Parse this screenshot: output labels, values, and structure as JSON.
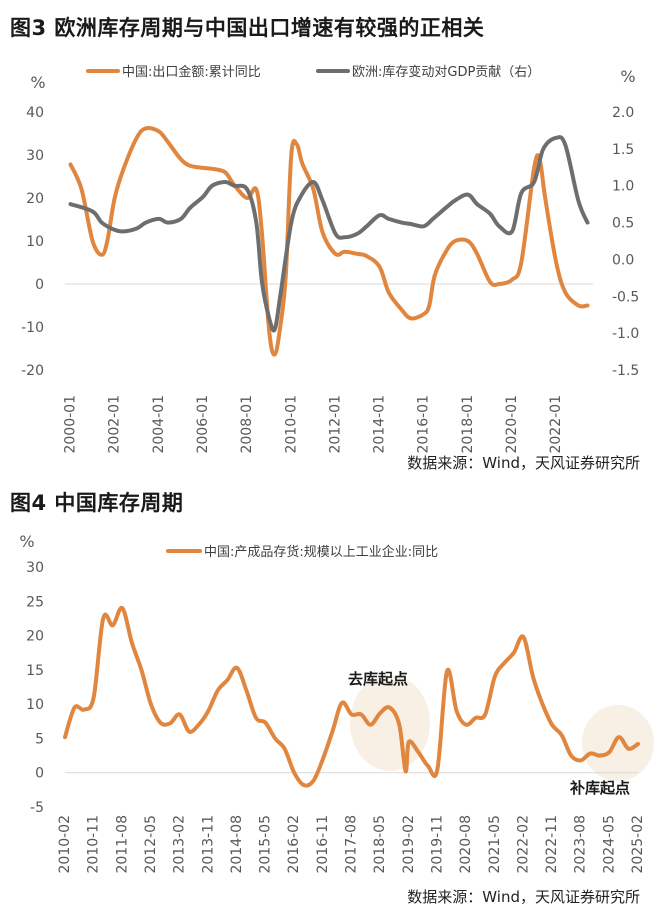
{
  "figure3": {
    "title": "图3  欧洲库存周期与中国出口增速有较强的正相关",
    "source": "数据来源：Wind，天风证券研究所",
    "chart_data": {
      "type": "line",
      "title": "图3  欧洲库存周期与中国出口增速有较强的正相关",
      "left_unit": "%",
      "right_unit": "%",
      "ylim_left": [
        -20,
        40
      ],
      "ylim_right": [
        -1.5,
        2.0
      ],
      "yticks_left": [
        "40",
        "30",
        "20",
        "10",
        "0",
        "-10",
        "-20"
      ],
      "yticks_right": [
        "2.0",
        "1.5",
        "1.0",
        "0.5",
        "0.0",
        "-0.5",
        "-1.0",
        "-1.5"
      ],
      "xticks": [
        "2000-01",
        "2002-01",
        "2004-01",
        "2006-01",
        "2008-01",
        "2010-01",
        "2012-01",
        "2014-01",
        "2016-01",
        "2018-01",
        "2020-01",
        "2022-01"
      ],
      "legend_position": "top",
      "series": [
        {
          "name": "中国:出口金额:累计同比",
          "axis": "left",
          "color": "#E0863F",
          "x": [
            "2000-01",
            "2000-07",
            "2001-01",
            "2001-06",
            "2001-09",
            "2002-01",
            "2002-06",
            "2003-01",
            "2003-06",
            "2004-01",
            "2004-06",
            "2005-01",
            "2005-06",
            "2006-01",
            "2006-06",
            "2007-01",
            "2007-06",
            "2008-01",
            "2008-06",
            "2008-09",
            "2009-01",
            "2009-04",
            "2009-07",
            "2009-10",
            "2010-01",
            "2010-04",
            "2010-07",
            "2011-01",
            "2011-06",
            "2012-01",
            "2012-06",
            "2013-01",
            "2013-06",
            "2014-01",
            "2014-06",
            "2015-01",
            "2015-06",
            "2016-01",
            "2016-04",
            "2016-07",
            "2017-01",
            "2017-06",
            "2018-01",
            "2018-06",
            "2019-01",
            "2019-06",
            "2020-01",
            "2020-06",
            "2021-01",
            "2021-04",
            "2021-07",
            "2022-01",
            "2022-06",
            "2023-01",
            "2023-06"
          ],
          "y": [
            27.8,
            22,
            10,
            6.8,
            10,
            20,
            27,
            34,
            36.2,
            35.5,
            33,
            29,
            27.5,
            27,
            26.8,
            26,
            23,
            20,
            22,
            12,
            -11,
            -16.4,
            -10,
            2,
            30,
            32.5,
            28,
            22,
            12,
            7,
            7.5,
            7,
            6.5,
            4,
            -2,
            -6,
            -8,
            -7,
            -5,
            2,
            7.5,
            10,
            10,
            7,
            0.5,
            0,
            1,
            5,
            27,
            29,
            20,
            5,
            -2,
            -5,
            -5
          ]
        },
        {
          "name": "欧洲:库存变动对GDP贡献（右）",
          "axis": "right",
          "color": "#6E6E6E",
          "x": [
            "2000-01",
            "2001-01",
            "2001-06",
            "2002-01",
            "2002-06",
            "2003-01",
            "2003-06",
            "2004-01",
            "2004-06",
            "2005-01",
            "2005-06",
            "2006-01",
            "2006-06",
            "2007-01",
            "2007-06",
            "2008-01",
            "2008-06",
            "2008-09",
            "2009-01",
            "2009-04",
            "2009-07",
            "2010-01",
            "2010-06",
            "2011-01",
            "2011-06",
            "2012-01",
            "2012-06",
            "2013-01",
            "2013-06",
            "2014-01",
            "2014-06",
            "2015-01",
            "2015-06",
            "2016-01",
            "2016-06",
            "2017-01",
            "2017-06",
            "2018-01",
            "2018-06",
            "2019-01",
            "2019-06",
            "2020-01",
            "2020-06",
            "2021-01",
            "2021-06",
            "2022-01",
            "2022-06",
            "2023-01",
            "2023-06"
          ],
          "y": [
            0.75,
            0.65,
            0.5,
            0.4,
            0.38,
            0.42,
            0.5,
            0.55,
            0.5,
            0.55,
            0.7,
            0.85,
            1.0,
            1.05,
            1.0,
            0.95,
            0.5,
            -0.3,
            -0.8,
            -0.95,
            -0.5,
            0.5,
            0.85,
            1.05,
            0.8,
            0.35,
            0.3,
            0.35,
            0.45,
            0.6,
            0.55,
            0.5,
            0.48,
            0.45,
            0.55,
            0.7,
            0.8,
            0.88,
            0.75,
            0.62,
            0.45,
            0.38,
            0.9,
            1.05,
            1.5,
            1.65,
            1.55,
            0.8,
            0.5
          ]
        }
      ]
    }
  },
  "figure4": {
    "title": "图4  中国库存周期",
    "source": "数据来源：Wind，天风证券研究所",
    "annotations": {
      "destock": "去库起点",
      "restock": "补库起点"
    },
    "chart_data": {
      "type": "line",
      "title": "图4  中国库存周期",
      "yunit": "%",
      "ylim": [
        -5,
        30
      ],
      "yticks": [
        "30",
        "25",
        "20",
        "15",
        "10",
        "5",
        "0",
        "-5"
      ],
      "xticks": [
        "2010-02",
        "2010-11",
        "2011-08",
        "2012-05",
        "2013-02",
        "2013-11",
        "2014-08",
        "2015-05",
        "2016-02",
        "2016-11",
        "2017-08",
        "2018-05",
        "2019-02",
        "2019-11",
        "2020-08",
        "2021-05",
        "2022-02",
        "2022-11",
        "2023-08",
        "2024-05",
        "2025-02"
      ],
      "legend_position": "top",
      "series": [
        {
          "name": "中国:产成品存货:规模以上工业企业:同比",
          "color": "#E0863F",
          "x": [
            "2010-02",
            "2010-05",
            "2010-08",
            "2010-11",
            "2011-02",
            "2011-05",
            "2011-08",
            "2011-11",
            "2012-02",
            "2012-05",
            "2012-08",
            "2012-11",
            "2013-02",
            "2013-05",
            "2013-08",
            "2013-11",
            "2014-02",
            "2014-05",
            "2014-08",
            "2014-11",
            "2015-02",
            "2015-05",
            "2015-08",
            "2015-11",
            "2016-02",
            "2016-05",
            "2016-08",
            "2016-11",
            "2017-02",
            "2017-05",
            "2017-08",
            "2017-11",
            "2018-02",
            "2018-05",
            "2018-08",
            "2018-11",
            "2019-01",
            "2019-02",
            "2019-05",
            "2019-08",
            "2019-11",
            "2020-02",
            "2020-05",
            "2020-08",
            "2020-11",
            "2021-02",
            "2021-05",
            "2021-08",
            "2021-11",
            "2022-02",
            "2022-05",
            "2022-08",
            "2022-11",
            "2023-02",
            "2023-05",
            "2023-08",
            "2023-11",
            "2024-02",
            "2024-05",
            "2024-08",
            "2024-11",
            "2025-02"
          ],
          "y": [
            5.2,
            9.5,
            9.2,
            11,
            22.5,
            21.5,
            24,
            19,
            15,
            10,
            7.3,
            7.2,
            8.5,
            6,
            7,
            9,
            12,
            13.5,
            15.3,
            12,
            8,
            7.3,
            5,
            3.5,
            0,
            -1.8,
            -1.2,
            2,
            6,
            10.2,
            8.5,
            8.5,
            7,
            8.7,
            9.5,
            7,
            0.2,
            4.5,
            3,
            1,
            0.5,
            14.8,
            9,
            7,
            8,
            8.5,
            14,
            16,
            17.5,
            19.8,
            14,
            10,
            7,
            5.5,
            2.5,
            1.8,
            2.8,
            2.5,
            3,
            5.2,
            3.5,
            4.2
          ]
        }
      ]
    }
  }
}
